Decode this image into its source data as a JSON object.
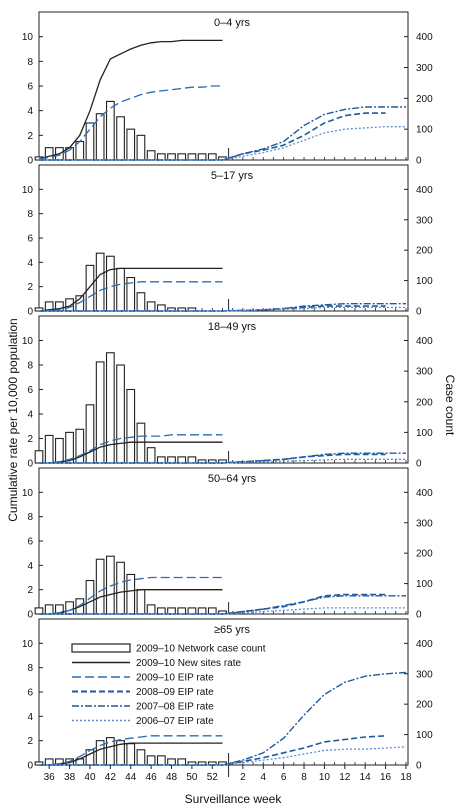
{
  "chart_data": {
    "type": "bar",
    "xlabel": "Surveillance week",
    "ylabel_left": "Cumulative rate per 10,000 population",
    "ylabel_right": "Case count",
    "x_ticks": [
      "36",
      "38",
      "40",
      "42",
      "44",
      "46",
      "48",
      "50",
      "52",
      "2",
      "4",
      "6",
      "8",
      "10",
      "12",
      "14",
      "16",
      "18"
    ],
    "left_ticks": [
      "0",
      "2",
      "4",
      "6",
      "8",
      "10"
    ],
    "right_ticks": [
      "0",
      "100",
      "200",
      "300",
      "400"
    ],
    "ylim_left": [
      0,
      12
    ],
    "ylim_right": [
      0,
      480
    ],
    "legend": [
      {
        "label": "2009–10 Network case count",
        "key": "bars"
      },
      {
        "label": "2009–10 New sites rate",
        "key": "new_sites"
      },
      {
        "label": "2009–10 EIP rate",
        "key": "eip_0910"
      },
      {
        "label": "2008–09 EIP rate",
        "key": "eip_0809"
      },
      {
        "label": "2007–08 EIP rate",
        "key": "eip_0708"
      },
      {
        "label": "2006–07 EIP rate",
        "key": "eip_0607"
      }
    ],
    "colors": {
      "bars": "#222222",
      "new_sites": "#222222",
      "eip_0910": "#2a6db3",
      "eip_0809": "#1f5a9e",
      "eip_0708": "#1f5a9e",
      "eip_0607": "#5b8fcf"
    },
    "weeks_2009": [
      35,
      36,
      37,
      38,
      39,
      40,
      41,
      42,
      43,
      44,
      45,
      46,
      47,
      48,
      49,
      50,
      51,
      52,
      53
    ],
    "weeks_2009_10_rate": [
      35,
      36,
      37,
      38,
      39,
      40,
      41,
      42,
      43,
      44,
      45,
      46,
      47,
      48,
      49,
      50,
      51,
      52,
      53
    ],
    "panels": [
      {
        "title": "0–4 yrs",
        "case_counts": [
          10,
          40,
          40,
          40,
          60,
          120,
          150,
          190,
          140,
          100,
          80,
          30,
          20,
          20,
          20,
          20,
          20,
          20,
          10
        ],
        "new_sites_rate": [
          0.1,
          0.3,
          0.5,
          1.0,
          2.0,
          4.0,
          6.5,
          8.2,
          8.6,
          9.0,
          9.3,
          9.5,
          9.6,
          9.6,
          9.7,
          9.7,
          9.7,
          9.7,
          9.7
        ],
        "eip_0910": [
          0.1,
          0.2,
          0.4,
          0.8,
          1.5,
          2.5,
          3.5,
          4.2,
          4.7,
          5.0,
          5.3,
          5.5,
          5.6,
          5.7,
          5.8,
          5.9,
          5.9,
          6.0,
          6.0
        ],
        "seasons": {
          "weeks": [
            35,
            37,
            39,
            41,
            43,
            45,
            47,
            49,
            51,
            53,
            55,
            57,
            59,
            61,
            63,
            65,
            67,
            69,
            71
          ],
          "eip_0809": [
            0,
            0,
            0,
            0,
            0,
            0,
            0,
            0,
            0,
            0,
            0.5,
            0.8,
            1.2,
            2.0,
            3.0,
            3.6,
            3.8,
            3.8,
            null
          ],
          "eip_0708": [
            0,
            0,
            0,
            0,
            0,
            0,
            0,
            0,
            0,
            0,
            0.5,
            0.9,
            1.5,
            2.8,
            3.7,
            4.1,
            4.3,
            4.3,
            4.3
          ],
          "eip_0607": [
            0,
            0,
            0,
            0,
            0,
            0,
            0,
            0,
            0,
            0,
            0.3,
            0.6,
            1.0,
            1.6,
            2.2,
            2.5,
            2.6,
            2.7,
            2.7
          ]
        }
      },
      {
        "title": "5–17 yrs",
        "case_counts": [
          10,
          30,
          30,
          40,
          50,
          150,
          190,
          180,
          140,
          110,
          60,
          30,
          20,
          10,
          10,
          10,
          0,
          0,
          0
        ],
        "new_sites_rate": [
          0.0,
          0.1,
          0.2,
          0.4,
          1.0,
          2.0,
          3.0,
          3.4,
          3.5,
          3.5,
          3.5,
          3.5,
          3.5,
          3.5,
          3.5,
          3.5,
          3.5,
          3.5,
          3.5
        ],
        "eip_0910": [
          0.0,
          0.0,
          0.1,
          0.3,
          0.7,
          1.2,
          1.7,
          2.0,
          2.2,
          2.3,
          2.4,
          2.4,
          2.4,
          2.4,
          2.4,
          2.4,
          2.4,
          2.4,
          2.4
        ],
        "seasons": {
          "weeks": [
            35,
            37,
            39,
            41,
            43,
            45,
            47,
            49,
            51,
            53,
            55,
            57,
            59,
            61,
            63,
            65,
            67,
            69,
            71
          ],
          "eip_0809": [
            0,
            0,
            0,
            0,
            0,
            0,
            0,
            0,
            0,
            0,
            0.05,
            0.1,
            0.2,
            0.3,
            0.4,
            0.4,
            0.4,
            0.4,
            null
          ],
          "eip_0708": [
            0,
            0,
            0,
            0,
            0,
            0,
            0,
            0,
            0,
            0,
            0.05,
            0.1,
            0.2,
            0.4,
            0.5,
            0.6,
            0.6,
            0.6,
            0.6
          ],
          "eip_0607": [
            0,
            0,
            0,
            0,
            0,
            0,
            0,
            0,
            0,
            0,
            0.05,
            0.1,
            0.15,
            0.2,
            0.3,
            0.3,
            0.3,
            0.3,
            0.3
          ]
        }
      },
      {
        "title": "18–49 yrs",
        "case_counts": [
          40,
          90,
          80,
          100,
          110,
          190,
          330,
          360,
          320,
          240,
          130,
          50,
          20,
          20,
          20,
          20,
          10,
          10,
          10
        ],
        "new_sites_rate": [
          0.0,
          0.0,
          0.1,
          0.2,
          0.5,
          0.9,
          1.3,
          1.5,
          1.6,
          1.7,
          1.7,
          1.7,
          1.7,
          1.7,
          1.7,
          1.7,
          1.7,
          1.7,
          1.7
        ],
        "eip_0910": [
          0.0,
          0.0,
          0.1,
          0.3,
          0.6,
          1.0,
          1.5,
          1.8,
          2.0,
          2.1,
          2.2,
          2.2,
          2.2,
          2.3,
          2.3,
          2.3,
          2.3,
          2.3,
          2.3
        ],
        "seasons": {
          "weeks": [
            35,
            37,
            39,
            41,
            43,
            45,
            47,
            49,
            51,
            53,
            55,
            57,
            59,
            61,
            63,
            65,
            67,
            69,
            71
          ],
          "eip_0809": [
            0,
            0,
            0,
            0,
            0,
            0,
            0,
            0,
            0,
            0,
            0.1,
            0.2,
            0.3,
            0.5,
            0.6,
            0.7,
            0.7,
            0.7,
            null
          ],
          "eip_0708": [
            0,
            0,
            0,
            0,
            0,
            0,
            0,
            0,
            0,
            0,
            0.1,
            0.2,
            0.3,
            0.5,
            0.7,
            0.8,
            0.8,
            0.8,
            0.8
          ],
          "eip_0607": [
            0,
            0,
            0,
            0,
            0,
            0,
            0,
            0,
            0,
            0,
            0.05,
            0.1,
            0.15,
            0.2,
            0.25,
            0.3,
            0.3,
            0.3,
            0.3
          ]
        }
      },
      {
        "title": "50–64 yrs",
        "case_counts": [
          20,
          30,
          30,
          40,
          50,
          110,
          180,
          190,
          170,
          130,
          80,
          30,
          20,
          20,
          20,
          20,
          20,
          20,
          10
        ],
        "new_sites_rate": [
          0.0,
          0.0,
          0.1,
          0.3,
          0.6,
          1.0,
          1.4,
          1.6,
          1.8,
          1.9,
          2.0,
          2.0,
          2.0,
          2.0,
          2.0,
          2.0,
          2.0,
          2.0,
          2.0
        ],
        "eip_0910": [
          0.0,
          0.0,
          0.1,
          0.3,
          0.7,
          1.3,
          1.9,
          2.3,
          2.6,
          2.8,
          2.9,
          3.0,
          3.0,
          3.0,
          3.0,
          3.0,
          3.0,
          3.0,
          3.0
        ],
        "seasons": {
          "weeks": [
            35,
            37,
            39,
            41,
            43,
            45,
            47,
            49,
            51,
            53,
            55,
            57,
            59,
            61,
            63,
            65,
            67,
            69,
            71
          ],
          "eip_0809": [
            0,
            0,
            0,
            0,
            0,
            0,
            0,
            0,
            0,
            0,
            0.2,
            0.4,
            0.6,
            1.0,
            1.5,
            1.6,
            1.6,
            1.6,
            null
          ],
          "eip_0708": [
            0,
            0,
            0,
            0,
            0,
            0,
            0,
            0,
            0,
            0,
            0.2,
            0.4,
            0.7,
            1.0,
            1.4,
            1.5,
            1.5,
            1.5,
            1.5
          ],
          "eip_0607": [
            0,
            0,
            0,
            0,
            0,
            0,
            0,
            0,
            0,
            0,
            0.1,
            0.2,
            0.3,
            0.4,
            0.5,
            0.5,
            0.5,
            0.5,
            0.5
          ]
        }
      },
      {
        "title": "≥65 yrs",
        "case_counts": [
          10,
          20,
          20,
          20,
          20,
          50,
          80,
          90,
          80,
          70,
          50,
          30,
          30,
          20,
          20,
          10,
          10,
          10,
          10
        ],
        "new_sites_rate": [
          0.0,
          0.0,
          0.1,
          0.2,
          0.5,
          0.9,
          1.3,
          1.5,
          1.7,
          1.8,
          1.8,
          1.8,
          1.8,
          1.8,
          1.8,
          1.8,
          1.8,
          1.8,
          1.8
        ],
        "eip_0910": [
          0.0,
          0.0,
          0.1,
          0.3,
          0.7,
          1.2,
          1.6,
          1.9,
          2.1,
          2.2,
          2.3,
          2.4,
          2.4,
          2.4,
          2.4,
          2.4,
          2.4,
          2.4,
          2.4
        ],
        "seasons": {
          "weeks": [
            35,
            37,
            39,
            41,
            43,
            45,
            47,
            49,
            51,
            53,
            55,
            57,
            59,
            61,
            63,
            65,
            67,
            69,
            71
          ],
          "eip_0809": [
            0,
            0,
            0,
            0,
            0,
            0,
            0,
            0,
            0,
            0,
            0.3,
            0.6,
            1.0,
            1.4,
            1.9,
            2.1,
            2.3,
            2.4,
            null
          ],
          "eip_0708": [
            0,
            0,
            0,
            0,
            0,
            0,
            0,
            0,
            0,
            0,
            0.4,
            1.0,
            2.2,
            4.1,
            5.8,
            6.8,
            7.3,
            7.5,
            7.6
          ],
          "eip_0607": [
            0,
            0,
            0,
            0,
            0,
            0,
            0,
            0,
            0,
            0,
            0.2,
            0.4,
            0.6,
            0.9,
            1.2,
            1.3,
            1.3,
            1.4,
            1.5
          ]
        }
      }
    ]
  }
}
